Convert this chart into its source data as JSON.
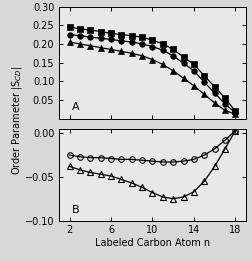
{
  "panel_A": {
    "x": [
      2,
      3,
      4,
      5,
      6,
      7,
      8,
      9,
      10,
      11,
      12,
      13,
      14,
      15,
      16,
      17,
      18
    ],
    "squares": [
      0.245,
      0.24,
      0.237,
      0.233,
      0.228,
      0.225,
      0.222,
      0.218,
      0.21,
      0.2,
      0.185,
      0.165,
      0.145,
      0.115,
      0.085,
      0.055,
      0.02
    ],
    "circles": [
      0.225,
      0.222,
      0.218,
      0.215,
      0.212,
      0.208,
      0.205,
      0.2,
      0.193,
      0.183,
      0.168,
      0.148,
      0.128,
      0.098,
      0.068,
      0.04,
      0.015
    ],
    "triangles": [
      0.205,
      0.2,
      0.195,
      0.19,
      0.185,
      0.18,
      0.175,
      0.168,
      0.158,
      0.145,
      0.128,
      0.108,
      0.088,
      0.065,
      0.042,
      0.022,
      0.012
    ],
    "ylim": [
      0.0,
      0.3
    ],
    "yticks": [
      0.05,
      0.1,
      0.15,
      0.2,
      0.25,
      0.3
    ],
    "label": "A"
  },
  "panel_B": {
    "x": [
      2,
      3,
      4,
      5,
      6,
      7,
      8,
      9,
      10,
      11,
      12,
      13,
      14,
      15,
      16,
      17,
      18
    ],
    "circles": [
      -0.025,
      -0.027,
      -0.028,
      -0.028,
      -0.029,
      -0.03,
      -0.03,
      -0.031,
      -0.032,
      -0.033,
      -0.033,
      -0.032,
      -0.03,
      -0.025,
      -0.018,
      -0.008,
      0.003
    ],
    "triangles": [
      -0.038,
      -0.042,
      -0.045,
      -0.047,
      -0.049,
      -0.053,
      -0.057,
      -0.062,
      -0.068,
      -0.073,
      -0.075,
      -0.073,
      -0.067,
      -0.055,
      -0.038,
      -0.018,
      0.003
    ],
    "ylim": [
      -0.1,
      0.005
    ],
    "yticks": [
      -0.1,
      -0.05,
      0.0
    ],
    "label": "B"
  },
  "xlabel": "Labeled Carbon Atom n",
  "ylabel": "Order Parameter |S",
  "xlim": [
    1,
    19
  ],
  "xticks": [
    2,
    6,
    10,
    14,
    18
  ],
  "line_color": "#000000",
  "bg_color": "#f0f0f0",
  "marker_size": 4,
  "line_width": 0.9,
  "font_size": 7
}
